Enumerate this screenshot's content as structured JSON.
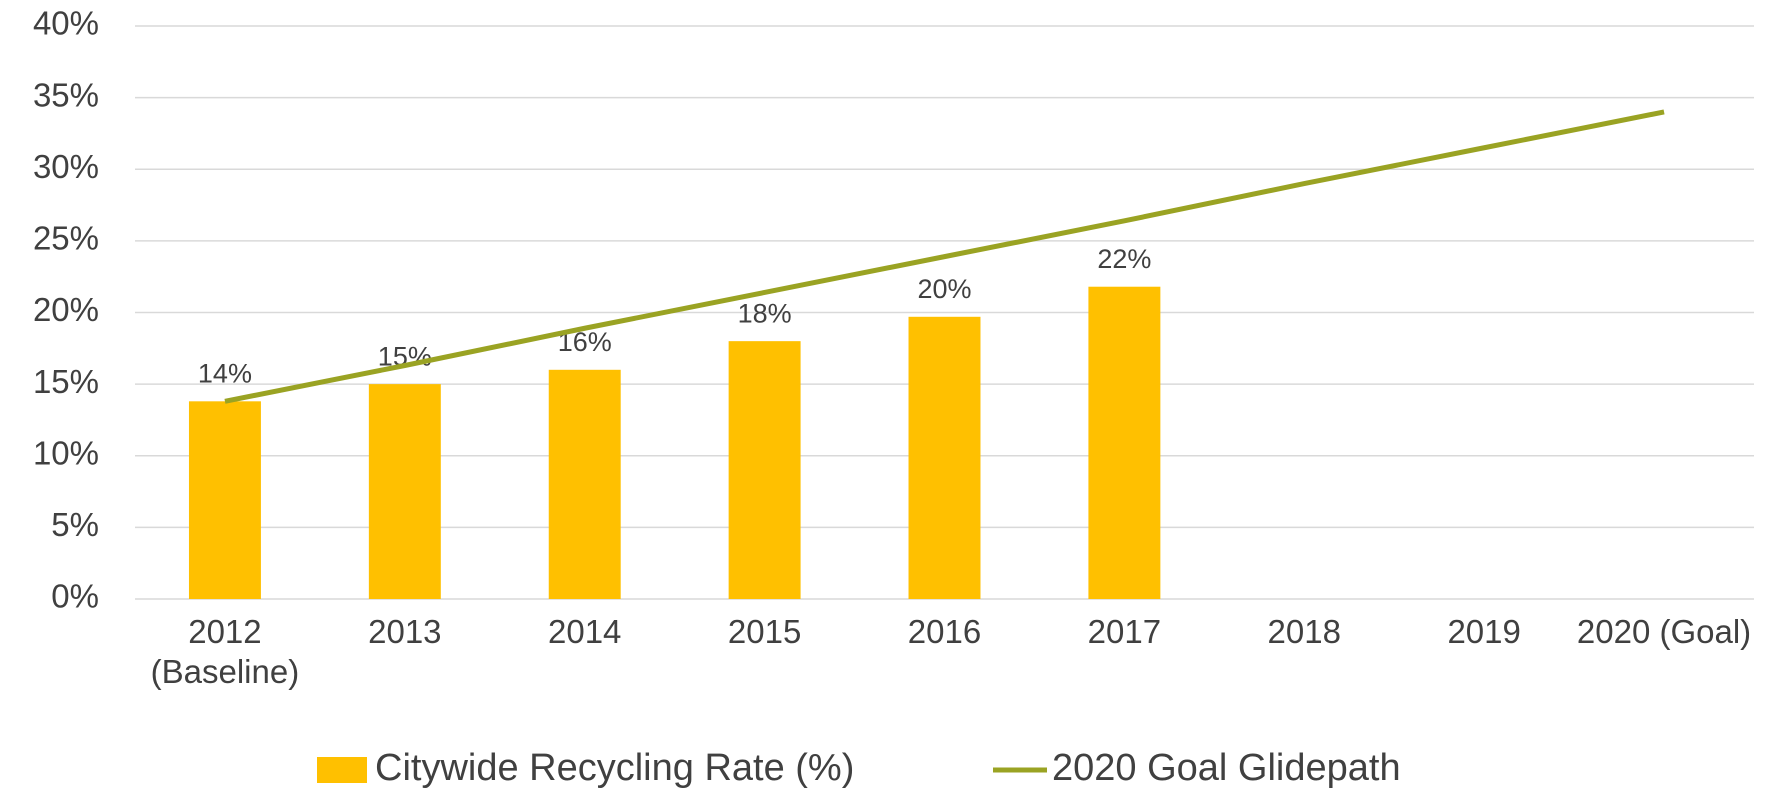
{
  "chart_data": {
    "type": "bar",
    "categories": [
      "2012 (Baseline)",
      "2013",
      "2014",
      "2015",
      "2016",
      "2017",
      "2018",
      "2019",
      "2020 (Goal)"
    ],
    "series": [
      {
        "name": "Citywide Recycling Rate (%)",
        "type": "bar",
        "color": "#FFC000",
        "values": [
          13.8,
          15,
          16,
          18,
          19.7,
          21.8,
          null,
          null,
          null
        ],
        "value_labels": [
          "14%",
          "15%",
          "16%",
          "18%",
          "20%",
          "22%",
          null,
          null,
          null
        ]
      },
      {
        "name": "2020 Goal Glidepath",
        "type": "line",
        "color": "#9AA323",
        "values": [
          13.8,
          16.3,
          18.9,
          21.4,
          23.9,
          26.4,
          29.0,
          31.5,
          34.0
        ]
      }
    ],
    "ylim": [
      0,
      40
    ],
    "yticks": [
      {
        "value": 0,
        "label": "0%"
      },
      {
        "value": 5,
        "label": "5%"
      },
      {
        "value": 10,
        "label": "10%"
      },
      {
        "value": 15,
        "label": "15%"
      },
      {
        "value": 20,
        "label": "20%"
      },
      {
        "value": 25,
        "label": "25%"
      },
      {
        "value": 30,
        "label": "30%"
      },
      {
        "value": 35,
        "label": "35%"
      },
      {
        "value": 40,
        "label": "40%"
      }
    ],
    "grid": true,
    "legend": "bottom"
  }
}
